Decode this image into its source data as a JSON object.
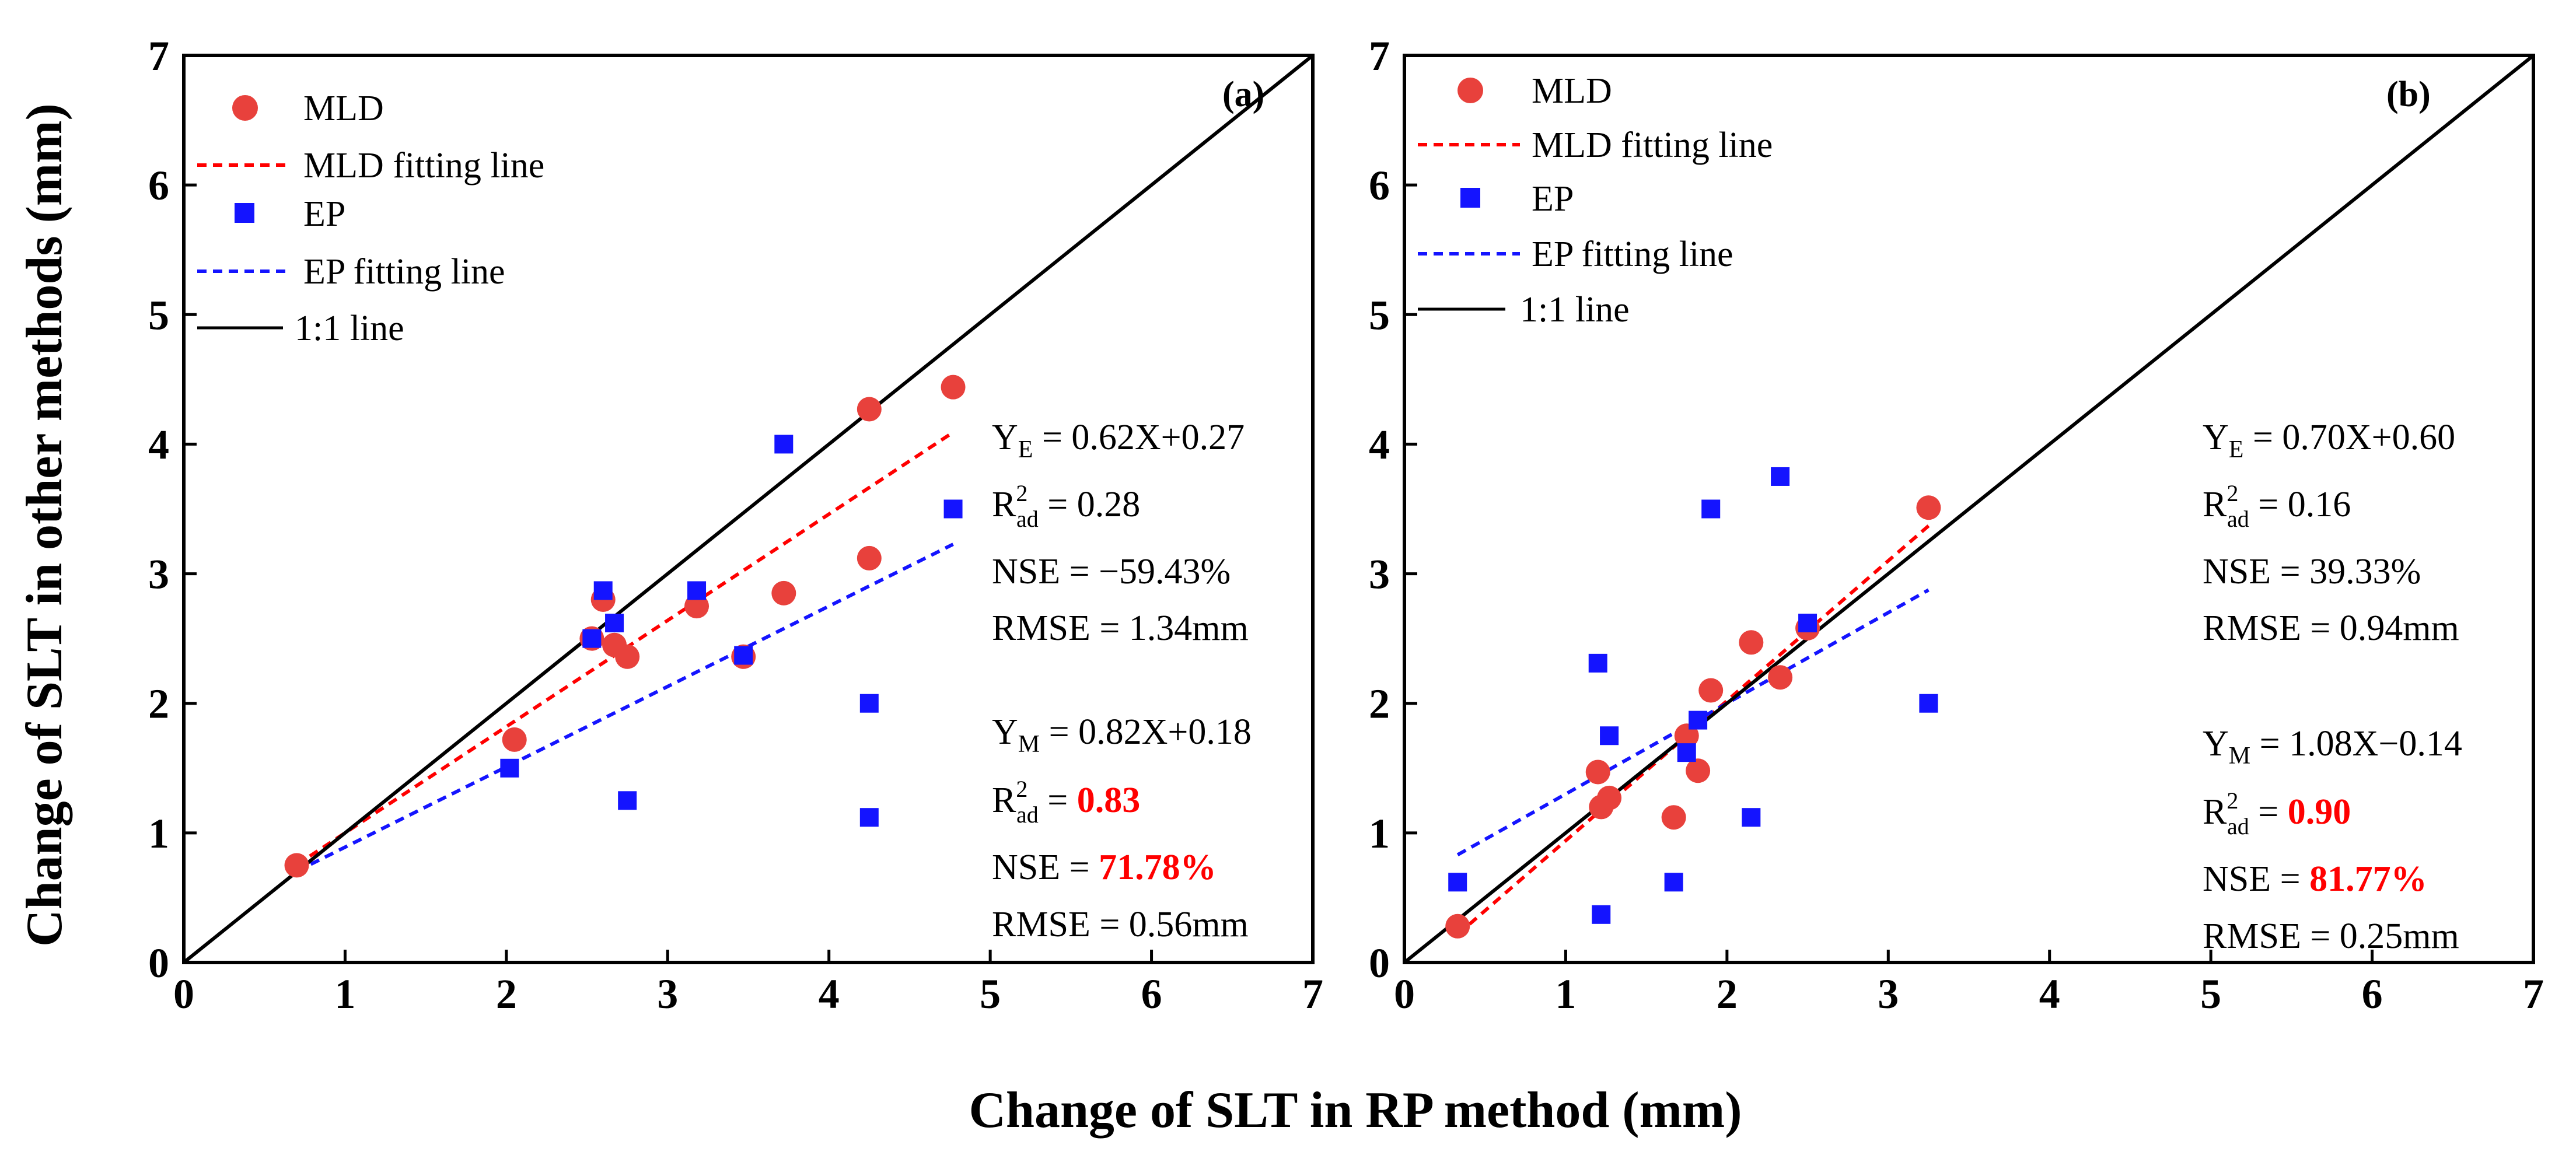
{
  "chart_data": [
    {
      "type": "scatter",
      "panel_label": "(a)",
      "xlim": [
        0,
        7
      ],
      "ylim": [
        0,
        7
      ],
      "xticks": [
        "0",
        "1",
        "2",
        "3",
        "4",
        "5",
        "6",
        "7"
      ],
      "yticks": [
        "0",
        "1",
        "2",
        "3",
        "4",
        "5",
        "6",
        "7"
      ],
      "legend": {
        "position": "top-left",
        "entries": [
          "MLD",
          "MLD fitting line",
          "EP",
          "EP fitting line",
          "1:1 line"
        ]
      },
      "series": [
        {
          "name": "MLD",
          "marker": "circle",
          "color": "#e8413c",
          "x": [
            0.7,
            2.05,
            2.53,
            2.6,
            2.67,
            2.75,
            3.18,
            3.47,
            3.72,
            4.25,
            4.25,
            4.77
          ],
          "y": [
            0.75,
            1.72,
            2.5,
            2.8,
            2.45,
            2.36,
            2.75,
            2.36,
            2.85,
            4.27,
            3.12,
            4.44
          ]
        },
        {
          "name": "EP",
          "marker": "square",
          "color": "#1414ff",
          "x": [
            2.02,
            2.53,
            2.6,
            2.67,
            2.75,
            3.18,
            3.47,
            3.72,
            4.25,
            4.25,
            4.77
          ],
          "y": [
            1.5,
            2.5,
            2.87,
            2.62,
            1.25,
            2.87,
            2.37,
            4.0,
            2.0,
            1.12,
            3.5
          ]
        }
      ],
      "fit_lines": [
        {
          "name": "MLD fitting line",
          "slope": 0.82,
          "intercept": 0.18,
          "x_range": [
            0.7,
            4.77
          ],
          "color": "#ff0000",
          "dash": true
        },
        {
          "name": "EP fitting line",
          "slope": 0.62,
          "intercept": 0.27,
          "x_range": [
            0.7,
            4.77
          ],
          "color": "#1414ff",
          "dash": true
        },
        {
          "name": "1:1 line",
          "slope": 1,
          "intercept": 0,
          "x_range": [
            0,
            7
          ],
          "color": "#000000",
          "dash": false
        }
      ],
      "stats": {
        "ep": {
          "eq_lhs": "Y",
          "eq_sub": "E",
          "eq_rhs": " = 0.62X+0.27",
          "r2_value": "0.28",
          "nse_value": "−59.43%",
          "rmse": "RMSE = 1.34mm"
        },
        "mld": {
          "eq_lhs": "Y",
          "eq_sub": "M",
          "eq_rhs": " = 0.82X+0.18",
          "r2_value": "0.83",
          "nse_value": "71.78%",
          "rmse": "RMSE = 0.56mm"
        }
      }
    },
    {
      "type": "scatter",
      "panel_label": "(b)",
      "xlim": [
        0,
        7
      ],
      "ylim": [
        0,
        7
      ],
      "xticks": [
        "0",
        "1",
        "2",
        "3",
        "4",
        "5",
        "6",
        "7"
      ],
      "yticks": [
        "0",
        "1",
        "2",
        "3",
        "4",
        "5",
        "6",
        "7"
      ],
      "legend": {
        "position": "top-left",
        "entries": [
          "MLD",
          "MLD  fitting line",
          "EP",
          "EP fitting line",
          "1:1 line"
        ]
      },
      "series": [
        {
          "name": "MLD",
          "marker": "circle",
          "color": "#e8413c",
          "x": [
            0.33,
            1.2,
            1.22,
            1.27,
            1.67,
            1.75,
            1.82,
            1.9,
            2.15,
            2.33,
            2.5,
            3.25
          ],
          "y": [
            0.28,
            1.47,
            1.2,
            1.27,
            1.12,
            1.75,
            1.48,
            2.1,
            2.47,
            2.2,
            2.58,
            3.51
          ]
        },
        {
          "name": "EP",
          "marker": "square",
          "color": "#1414ff",
          "x": [
            0.33,
            1.2,
            1.22,
            1.27,
            1.67,
            1.75,
            1.82,
            1.9,
            2.15,
            2.33,
            2.5,
            3.25
          ],
          "y": [
            0.62,
            2.31,
            0.37,
            1.75,
            0.62,
            1.62,
            1.87,
            3.5,
            1.12,
            3.75,
            2.62,
            2.0
          ]
        }
      ],
      "fit_lines": [
        {
          "name": "MLD  fitting line",
          "slope": 1.08,
          "intercept": -0.14,
          "x_range": [
            0.33,
            3.25
          ],
          "color": "#ff0000",
          "dash": true
        },
        {
          "name": "EP fitting line",
          "slope": 0.7,
          "intercept": 0.6,
          "x_range": [
            0.33,
            3.25
          ],
          "color": "#1414ff",
          "dash": true
        },
        {
          "name": "1:1 line",
          "slope": 1,
          "intercept": 0,
          "x_range": [
            0,
            7
          ],
          "color": "#000000",
          "dash": false
        }
      ],
      "stats": {
        "ep": {
          "eq_lhs": "Y",
          "eq_sub": "E",
          "eq_rhs": " = 0.70X+0.60",
          "r2_value": "0.16",
          "nse_value": "39.33%",
          "rmse": "RMSE = 0.94mm"
        },
        "mld": {
          "eq_lhs": "Y",
          "eq_sub": "M",
          "eq_rhs": " = 1.08X−0.14",
          "r2_value": "0.90",
          "nse_value": "81.77%",
          "rmse": "RMSE = 0.25mm"
        }
      }
    }
  ],
  "labels": {
    "ylabel": "Change of SLT in other methods (mm)",
    "xlabel": "Change of SLT in RP method (mm)",
    "r2_base": "R",
    "r2_sup": "2",
    "r2_sub": "ad",
    "eq_sign": " = ",
    "nse_prefix": "NSE = "
  }
}
